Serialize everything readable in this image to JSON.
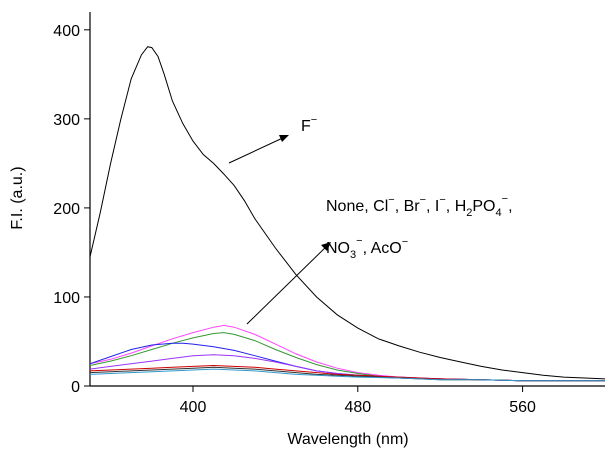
{
  "chart_data": {
    "type": "line",
    "title": "",
    "xlabel": "Wavelength (nm)",
    "ylabel": "F.I. (a.u.)",
    "xlim": [
      350,
      600
    ],
    "ylim": [
      0,
      420
    ],
    "xticks": [
      400,
      480,
      560
    ],
    "yticks": [
      0,
      100,
      200,
      300,
      400
    ],
    "grid": false,
    "legend": "none",
    "series": [
      {
        "color": "#000000",
        "x": [
          350,
          355,
          360,
          365,
          370,
          375,
          378,
          380,
          383,
          386,
          390,
          395,
          400,
          405,
          410,
          415,
          420,
          425,
          430,
          440,
          450,
          460,
          470,
          480,
          490,
          500,
          510,
          520,
          530,
          540,
          550,
          560,
          570,
          580,
          590,
          600
        ],
        "values": [
          145,
          195,
          250,
          300,
          345,
          372,
          381,
          380,
          370,
          350,
          320,
          295,
          275,
          260,
          250,
          238,
          225,
          208,
          188,
          155,
          125,
          100,
          80,
          65,
          53,
          45,
          38,
          32,
          27,
          22,
          18,
          15,
          12,
          10,
          9,
          8
        ]
      },
      {
        "color": "#ff44ff",
        "x": [
          350,
          360,
          370,
          380,
          390,
          400,
          410,
          415,
          420,
          430,
          440,
          450,
          460,
          470,
          480,
          490,
          500,
          520,
          540,
          560,
          580,
          600
        ],
        "values": [
          25,
          30,
          37,
          45,
          53,
          60,
          66,
          68,
          66,
          58,
          47,
          36,
          27,
          20,
          15,
          12,
          10,
          8,
          7,
          6,
          6,
          6
        ]
      },
      {
        "color": "#339933",
        "x": [
          350,
          360,
          370,
          380,
          390,
          400,
          410,
          415,
          420,
          430,
          440,
          450,
          460,
          470,
          480,
          490,
          500,
          520,
          540,
          560,
          580,
          600
        ],
        "values": [
          23,
          28,
          34,
          41,
          48,
          54,
          59,
          60,
          58,
          51,
          41,
          32,
          24,
          18,
          14,
          11,
          9,
          8,
          7,
          6,
          6,
          6
        ]
      },
      {
        "color": "#2222ee",
        "x": [
          350,
          360,
          370,
          380,
          390,
          395,
          400,
          410,
          420,
          430,
          440,
          450,
          460,
          470,
          480,
          490,
          500,
          520,
          540,
          560,
          580,
          600
        ],
        "values": [
          25,
          33,
          41,
          46,
          48,
          48,
          47,
          44,
          40,
          34,
          28,
          22,
          17,
          14,
          12,
          10,
          9,
          8,
          7,
          6,
          6,
          6
        ]
      },
      {
        "color": "#9933ff",
        "x": [
          350,
          360,
          370,
          380,
          390,
          400,
          410,
          420,
          430,
          440,
          450,
          460,
          470,
          480,
          500,
          520,
          540,
          560,
          580,
          600
        ],
        "values": [
          19,
          22,
          25,
          28,
          31,
          34,
          35,
          34,
          31,
          27,
          22,
          17,
          14,
          12,
          10,
          8,
          7,
          6,
          6,
          6
        ]
      },
      {
        "color": "#cc0000",
        "x": [
          350,
          360,
          370,
          380,
          390,
          400,
          410,
          420,
          430,
          440,
          450,
          460,
          470,
          480,
          500,
          520,
          540,
          560,
          580,
          600
        ],
        "values": [
          17,
          18,
          19,
          20,
          21,
          22,
          23,
          22,
          21,
          19,
          17,
          15,
          13,
          12,
          10,
          8,
          7,
          6,
          6,
          6
        ]
      },
      {
        "color": "#333333",
        "x": [
          350,
          360,
          370,
          380,
          390,
          400,
          410,
          420,
          430,
          440,
          450,
          460,
          470,
          480,
          500,
          520,
          540,
          560,
          580,
          600
        ],
        "values": [
          15,
          16,
          17,
          18,
          19,
          20,
          21,
          20,
          19,
          17,
          15,
          13,
          12,
          11,
          9,
          7,
          7,
          6,
          6,
          6
        ]
      },
      {
        "color": "#3399cc",
        "x": [
          350,
          360,
          370,
          380,
          390,
          400,
          410,
          420,
          430,
          440,
          450,
          460,
          470,
          480,
          500,
          520,
          540,
          560,
          580,
          600
        ],
        "values": [
          13,
          14,
          15,
          16,
          17,
          18,
          19,
          18,
          17,
          15,
          13,
          12,
          11,
          10,
          9,
          7,
          7,
          6,
          6,
          6
        ]
      }
    ],
    "annotations": {
      "fluoride_base": "F",
      "fluoride_sup": "−",
      "group_line1": {
        "t1": "None, Cl",
        "s1": "−",
        "t2": ", Br",
        "s2": "−",
        "t3": ", I",
        "s3": "−",
        "t4": ", H",
        "b1": "2",
        "t5": "PO",
        "b2": "4",
        "s4": "−",
        "t6": ","
      },
      "group_line2": {
        "t1": "NO",
        "b1": "3",
        "s1": "−",
        "t2": ", AcO",
        "s2": "−"
      }
    }
  }
}
